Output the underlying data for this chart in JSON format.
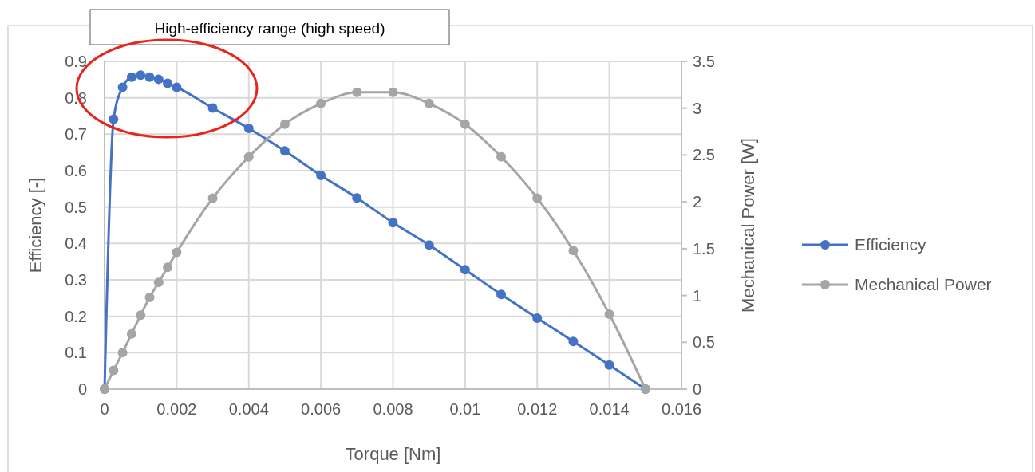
{
  "chart_data": {
    "type": "line",
    "xlabel": "Torque [Nm]",
    "ylabel": "Efficiency [-]",
    "y2label": "Mechanical Power [W]",
    "annotations": [
      "High-efficiency range (high speed)"
    ],
    "xlim": [
      0,
      0.016
    ],
    "xticks": [
      0,
      0.002,
      0.004,
      0.006,
      0.008,
      0.01,
      0.012,
      0.014,
      0.016
    ],
    "ylim": [
      0,
      0.9
    ],
    "yticks": [
      0,
      0.1,
      0.2,
      0.3,
      0.4,
      0.5,
      0.6,
      0.7,
      0.8,
      0.9
    ],
    "y2lim": [
      0,
      3.5
    ],
    "y2ticks": [
      0,
      0.5,
      1,
      1.5,
      2,
      2.5,
      3,
      3.5
    ],
    "grid": true,
    "legend": "right",
    "marker": "circle",
    "line_style": "solid",
    "x": [
      0,
      0.00025,
      0.0005,
      0.00075,
      0.001,
      0.00125,
      0.0015,
      0.00175,
      0.002,
      0.003,
      0.004,
      0.005,
      0.006,
      0.007,
      0.008,
      0.009,
      0.01,
      0.011,
      0.012,
      0.013,
      0.014,
      0.015
    ],
    "series": [
      {
        "name": "Efficiency",
        "color": "#4472c4",
        "values": [
          0,
          0.741,
          0.829,
          0.857,
          0.862,
          0.857,
          0.851,
          0.84,
          0.829,
          0.772,
          0.716,
          0.654,
          0.587,
          0.525,
          0.457,
          0.396,
          0.328,
          0.26,
          0.195,
          0.131,
          0.066,
          0
        ]
      },
      {
        "name": "Mechanical Power",
        "color": "#a5a5a5",
        "axis": "y2",
        "values": [
          0,
          0.2,
          0.39,
          0.59,
          0.79,
          0.98,
          1.14,
          1.3,
          1.46,
          2.04,
          2.48,
          2.83,
          3.05,
          3.17,
          3.17,
          3.05,
          2.83,
          2.48,
          2.04,
          1.48,
          0.8,
          0
        ]
      }
    ]
  }
}
